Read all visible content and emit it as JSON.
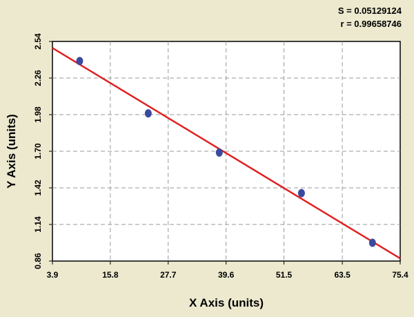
{
  "stats": {
    "s_label": "S = 0.05129124",
    "r_label": "r = 0.99658746"
  },
  "colors": {
    "background": "#ece9cf",
    "plot_area": "#ffffff",
    "points": "#3a4aa0",
    "fit_line": "#e02020",
    "grid": "#9a9a9a"
  },
  "chart_data": {
    "type": "scatter",
    "xlabel": "X Axis (units)",
    "ylabel": "Y Axis (units)",
    "xlim": [
      3.9,
      75.4
    ],
    "ylim": [
      0.86,
      2.54
    ],
    "x_ticks": [
      "3.9",
      "15.8",
      "27.7",
      "39.6",
      "51.5",
      "63.5",
      "75.4"
    ],
    "y_ticks": [
      "0.86",
      "1.14",
      "1.42",
      "1.70",
      "1.98",
      "2.26",
      "2.54"
    ],
    "grid": true,
    "points": [
      {
        "x": 9.5,
        "y": 2.39
      },
      {
        "x": 23.6,
        "y": 1.99
      },
      {
        "x": 38.2,
        "y": 1.69
      },
      {
        "x": 55.1,
        "y": 1.38
      },
      {
        "x": 69.7,
        "y": 1.0
      }
    ],
    "fit_line": {
      "x": [
        3.9,
        75.4
      ],
      "y": [
        2.49,
        0.88
      ]
    }
  }
}
